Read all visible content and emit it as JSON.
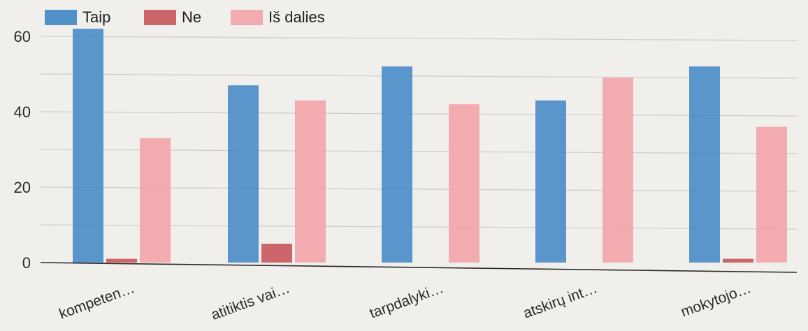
{
  "chart_data": {
    "type": "bar",
    "categories": [
      "kompeten…",
      "atitiktis vai…",
      "tarpdalyki…",
      "atskirų int…",
      "mokytojo…"
    ],
    "series": [
      {
        "name": "Taip",
        "color": "#3f86c6",
        "values": [
          62,
          47,
          52,
          43,
          52
        ]
      },
      {
        "name": "Ne",
        "color": "#c8575c",
        "values": [
          1,
          5,
          0,
          0,
          1
        ]
      },
      {
        "name": "Iš dalies",
        "color": "#f2a4a8",
        "values": [
          33,
          43,
          42,
          49,
          36
        ]
      }
    ],
    "yticks": [
      "0",
      "20",
      "40",
      "60"
    ],
    "ylim": [
      0,
      62
    ],
    "grid": true,
    "legend": "top-left"
  }
}
